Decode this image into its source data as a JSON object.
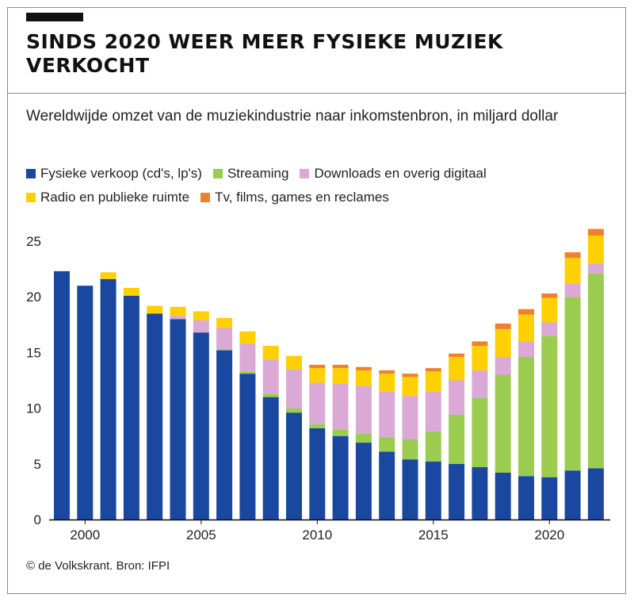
{
  "header": {
    "title": "SINDS 2020 WEER MEER FYSIEKE MUZIEK VERKOCHT"
  },
  "chart_data": {
    "type": "bar",
    "stacked": true,
    "title": "Wereldwijde omzet van de muziekindustrie naar inkomstenbron, in miljard dollar",
    "xlabel": "",
    "ylabel": "",
    "ylim": [
      0,
      26
    ],
    "y_ticks": [
      0,
      5,
      10,
      15,
      20,
      25
    ],
    "x_ticks": [
      2000,
      2005,
      2010,
      2015,
      2020
    ],
    "categories": [
      1999,
      2000,
      2001,
      2002,
      2003,
      2004,
      2005,
      2006,
      2007,
      2008,
      2009,
      2010,
      2011,
      2012,
      2013,
      2014,
      2015,
      2016,
      2017,
      2018,
      2019,
      2020,
      2021,
      2022
    ],
    "grid": false,
    "legend_position": "top",
    "series": [
      {
        "name": "Fysieke verkoop (cd's, lp's)",
        "color": "#1a47a0",
        "values": [
          22.3,
          21.0,
          21.6,
          20.1,
          18.5,
          18.0,
          16.8,
          15.2,
          13.1,
          11.0,
          9.6,
          8.2,
          7.5,
          6.9,
          6.1,
          5.4,
          5.2,
          5.0,
          4.7,
          4.2,
          3.9,
          3.8,
          4.4,
          4.6
        ]
      },
      {
        "name": "Streaming",
        "color": "#9ccc4f",
        "values": [
          0,
          0,
          0,
          0,
          0,
          0,
          0,
          0.1,
          0.2,
          0.3,
          0.4,
          0.4,
          0.6,
          0.8,
          1.3,
          1.8,
          2.7,
          4.4,
          6.2,
          8.8,
          10.7,
          12.7,
          15.6,
          17.5
        ]
      },
      {
        "name": "Downloads en overig digitaal",
        "color": "#dba9d6",
        "values": [
          0,
          0,
          0,
          0,
          0,
          0.3,
          1.1,
          1.9,
          2.5,
          3.1,
          3.5,
          3.7,
          4.1,
          4.3,
          4.1,
          3.9,
          3.6,
          3.1,
          2.5,
          1.6,
          1.4,
          1.2,
          1.2,
          0.9
        ]
      },
      {
        "name": "Radio en publieke ruimte",
        "color": "#ffd000",
        "values": [
          0,
          0,
          0.6,
          0.7,
          0.7,
          0.8,
          0.8,
          0.9,
          1.1,
          1.2,
          1.2,
          1.3,
          1.4,
          1.4,
          1.6,
          1.7,
          1.8,
          2.1,
          2.2,
          2.5,
          2.4,
          2.2,
          2.3,
          2.5
        ]
      },
      {
        "name": "Tv, films, games en reclames",
        "color": "#f08030",
        "values": [
          0,
          0,
          0,
          0,
          0,
          0,
          0,
          0,
          0,
          0,
          0,
          0.3,
          0.3,
          0.3,
          0.3,
          0.3,
          0.3,
          0.3,
          0.4,
          0.5,
          0.5,
          0.4,
          0.5,
          0.6
        ]
      }
    ]
  },
  "footer": {
    "credit": "© de Volkskrant. Bron: IFPI"
  }
}
